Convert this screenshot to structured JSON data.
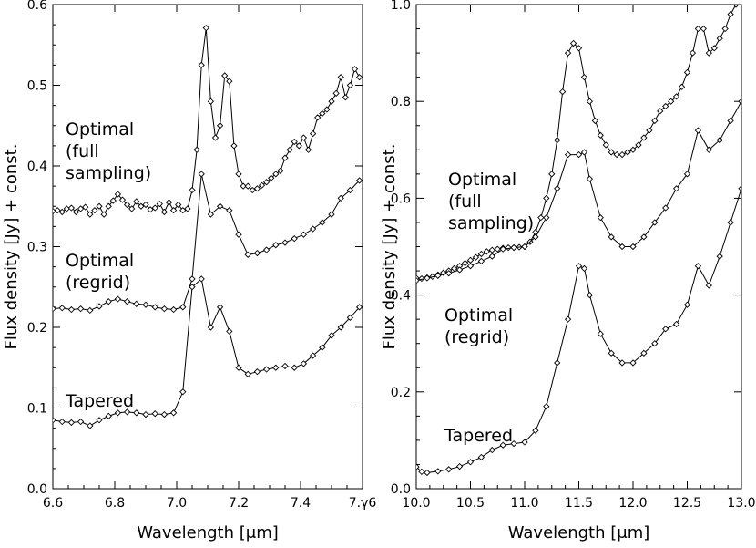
{
  "chart_data": [
    {
      "type": "line",
      "panel": "left",
      "xlabel": "Wavelength [μm]",
      "ylabel": "Flux density [Jy] + const.",
      "xlim": [
        6.6,
        7.6
      ],
      "ylim": [
        0.0,
        0.6
      ],
      "xticks": [
        "6.6",
        "6.8",
        "7.0",
        "7.2",
        "7.4",
        "7.γ6"
      ],
      "yticks": [
        "0.0",
        "0.1",
        "0.2",
        "0.3",
        "0.4",
        "0.5",
        "0.6"
      ],
      "annotations": [
        "Optimal",
        "(full",
        "sampling)",
        "Optimal",
        "(regrid)",
        "Tapered"
      ],
      "series": [
        {
          "name": "Optimal (full sampling)",
          "x": [
            6.6,
            6.615,
            6.63,
            6.645,
            6.66,
            6.675,
            6.69,
            6.705,
            6.72,
            6.735,
            6.75,
            6.765,
            6.78,
            6.795,
            6.81,
            6.825,
            6.84,
            6.855,
            6.87,
            6.885,
            6.9,
            6.915,
            6.93,
            6.945,
            6.96,
            6.975,
            6.99,
            7.005,
            7.02,
            7.035,
            7.05,
            7.065,
            7.08,
            7.095,
            7.11,
            7.125,
            7.14,
            7.155,
            7.17,
            7.185,
            7.2,
            7.215,
            7.23,
            7.245,
            7.26,
            7.275,
            7.29,
            7.305,
            7.32,
            7.335,
            7.35,
            7.365,
            7.38,
            7.395,
            7.41,
            7.425,
            7.44,
            7.455,
            7.47,
            7.485,
            7.5,
            7.515,
            7.53,
            7.545,
            7.56,
            7.575,
            7.59
          ],
          "values": [
            0.344,
            0.345,
            0.343,
            0.347,
            0.348,
            0.343,
            0.347,
            0.349,
            0.34,
            0.345,
            0.35,
            0.34,
            0.35,
            0.357,
            0.365,
            0.358,
            0.352,
            0.347,
            0.356,
            0.35,
            0.352,
            0.346,
            0.348,
            0.353,
            0.343,
            0.355,
            0.345,
            0.352,
            0.345,
            0.347,
            0.37,
            0.42,
            0.525,
            0.571,
            0.48,
            0.435,
            0.45,
            0.512,
            0.505,
            0.425,
            0.39,
            0.375,
            0.375,
            0.37,
            0.372,
            0.376,
            0.38,
            0.385,
            0.39,
            0.394,
            0.41,
            0.42,
            0.43,
            0.425,
            0.435,
            0.42,
            0.44,
            0.46,
            0.465,
            0.47,
            0.48,
            0.49,
            0.51,
            0.485,
            0.5,
            0.52,
            0.51
          ]
        },
        {
          "name": "Optimal (regrid)",
          "x": [
            6.6,
            6.63,
            6.66,
            6.69,
            6.72,
            6.75,
            6.78,
            6.81,
            6.84,
            6.87,
            6.9,
            6.93,
            6.96,
            6.99,
            7.02,
            7.05,
            7.08,
            7.11,
            7.14,
            7.17,
            7.2,
            7.23,
            7.26,
            7.29,
            7.32,
            7.35,
            7.38,
            7.41,
            7.44,
            7.47,
            7.5,
            7.53,
            7.56,
            7.59
          ],
          "values": [
            0.223,
            0.224,
            0.222,
            0.223,
            0.221,
            0.226,
            0.232,
            0.235,
            0.232,
            0.229,
            0.228,
            0.225,
            0.223,
            0.222,
            0.225,
            0.26,
            0.39,
            0.34,
            0.35,
            0.345,
            0.315,
            0.29,
            0.292,
            0.296,
            0.302,
            0.305,
            0.31,
            0.315,
            0.322,
            0.33,
            0.34,
            0.36,
            0.37,
            0.382
          ]
        },
        {
          "name": "Tapered",
          "x": [
            6.6,
            6.63,
            6.66,
            6.69,
            6.72,
            6.75,
            6.78,
            6.81,
            6.84,
            6.87,
            6.9,
            6.93,
            6.96,
            6.99,
            7.02,
            7.05,
            7.08,
            7.11,
            7.14,
            7.17,
            7.2,
            7.23,
            7.26,
            7.29,
            7.32,
            7.35,
            7.38,
            7.41,
            7.44,
            7.47,
            7.5,
            7.53,
            7.56,
            7.59
          ],
          "values": [
            0.085,
            0.083,
            0.082,
            0.083,
            0.078,
            0.085,
            0.09,
            0.094,
            0.095,
            0.094,
            0.092,
            0.093,
            0.092,
            0.094,
            0.12,
            0.25,
            0.26,
            0.2,
            0.225,
            0.195,
            0.15,
            0.142,
            0.145,
            0.148,
            0.15,
            0.152,
            0.15,
            0.155,
            0.165,
            0.175,
            0.19,
            0.2,
            0.212,
            0.225
          ]
        }
      ]
    },
    {
      "type": "line",
      "panel": "right",
      "xlabel": "Wavelength [μm]",
      "ylabel": "Flux density [Jy] + const.",
      "xlim": [
        10.0,
        13.0
      ],
      "ylim": [
        0.0,
        1.0
      ],
      "xticks": [
        "10.0",
        "10.5",
        "11.0",
        "11.5",
        "12.0",
        "12.5",
        "13.0"
      ],
      "yticks": [
        "0.0",
        "0.2",
        "0.4",
        "0.6",
        "0.8",
        "1.0"
      ],
      "annotations": [
        "Optimal",
        "(full",
        "sampling)",
        "Optimal",
        "(regrid)",
        "Tapered"
      ],
      "series": [
        {
          "name": "Optimal (full sampling)",
          "x": [
            10.0,
            10.05,
            10.1,
            10.15,
            10.2,
            10.25,
            10.3,
            10.35,
            10.4,
            10.45,
            10.5,
            10.55,
            10.6,
            10.65,
            10.7,
            10.75,
            10.8,
            10.85,
            10.9,
            10.95,
            11.0,
            11.05,
            11.1,
            11.15,
            11.2,
            11.25,
            11.3,
            11.35,
            11.4,
            11.45,
            11.5,
            11.55,
            11.6,
            11.65,
            11.7,
            11.75,
            11.8,
            11.85,
            11.9,
            11.95,
            12.0,
            12.05,
            12.1,
            12.15,
            12.2,
            12.25,
            12.3,
            12.35,
            12.4,
            12.45,
            12.5,
            12.55,
            12.6,
            12.65,
            12.7,
            12.75,
            12.8,
            12.85,
            12.9,
            12.95,
            13.0
          ],
          "values": [
            0.435,
            0.434,
            0.436,
            0.438,
            0.442,
            0.446,
            0.45,
            0.455,
            0.46,
            0.466,
            0.472,
            0.478,
            0.485,
            0.49,
            0.493,
            0.495,
            0.497,
            0.498,
            0.498,
            0.499,
            0.5,
            0.51,
            0.53,
            0.56,
            0.6,
            0.65,
            0.72,
            0.82,
            0.9,
            0.92,
            0.91,
            0.85,
            0.8,
            0.76,
            0.73,
            0.71,
            0.695,
            0.69,
            0.69,
            0.695,
            0.7,
            0.71,
            0.725,
            0.74,
            0.76,
            0.78,
            0.79,
            0.8,
            0.81,
            0.83,
            0.86,
            0.9,
            0.95,
            0.95,
            0.9,
            0.91,
            0.93,
            0.95,
            0.98,
            1.0,
            1.02
          ]
        },
        {
          "name": "Optimal (regrid)",
          "x": [
            10.0,
            10.1,
            10.2,
            10.3,
            10.4,
            10.5,
            10.6,
            10.7,
            10.8,
            10.9,
            11.0,
            11.1,
            11.2,
            11.3,
            11.4,
            11.5,
            11.55,
            11.6,
            11.7,
            11.8,
            11.9,
            12.0,
            12.1,
            12.2,
            12.3,
            12.4,
            12.5,
            12.6,
            12.7,
            12.8,
            12.9,
            13.0
          ],
          "values": [
            0.43,
            0.435,
            0.44,
            0.445,
            0.452,
            0.46,
            0.47,
            0.48,
            0.495,
            0.498,
            0.5,
            0.52,
            0.56,
            0.62,
            0.69,
            0.69,
            0.695,
            0.64,
            0.56,
            0.52,
            0.5,
            0.5,
            0.52,
            0.55,
            0.58,
            0.62,
            0.65,
            0.74,
            0.7,
            0.72,
            0.76,
            0.8
          ]
        },
        {
          "name": "Tapered",
          "x": [
            10.0,
            10.05,
            10.1,
            10.2,
            10.3,
            10.4,
            10.5,
            10.6,
            10.7,
            10.8,
            10.9,
            11.0,
            11.1,
            11.2,
            11.3,
            11.4,
            11.5,
            11.55,
            11.6,
            11.7,
            11.8,
            11.9,
            12.0,
            12.1,
            12.2,
            12.3,
            12.4,
            12.5,
            12.6,
            12.7,
            12.8,
            12.9,
            13.0
          ],
          "values": [
            0.045,
            0.035,
            0.033,
            0.036,
            0.04,
            0.046,
            0.055,
            0.065,
            0.08,
            0.09,
            0.093,
            0.096,
            0.12,
            0.17,
            0.26,
            0.35,
            0.46,
            0.455,
            0.4,
            0.32,
            0.28,
            0.26,
            0.26,
            0.28,
            0.3,
            0.33,
            0.34,
            0.38,
            0.46,
            0.42,
            0.48,
            0.55,
            0.62
          ]
        }
      ]
    }
  ]
}
